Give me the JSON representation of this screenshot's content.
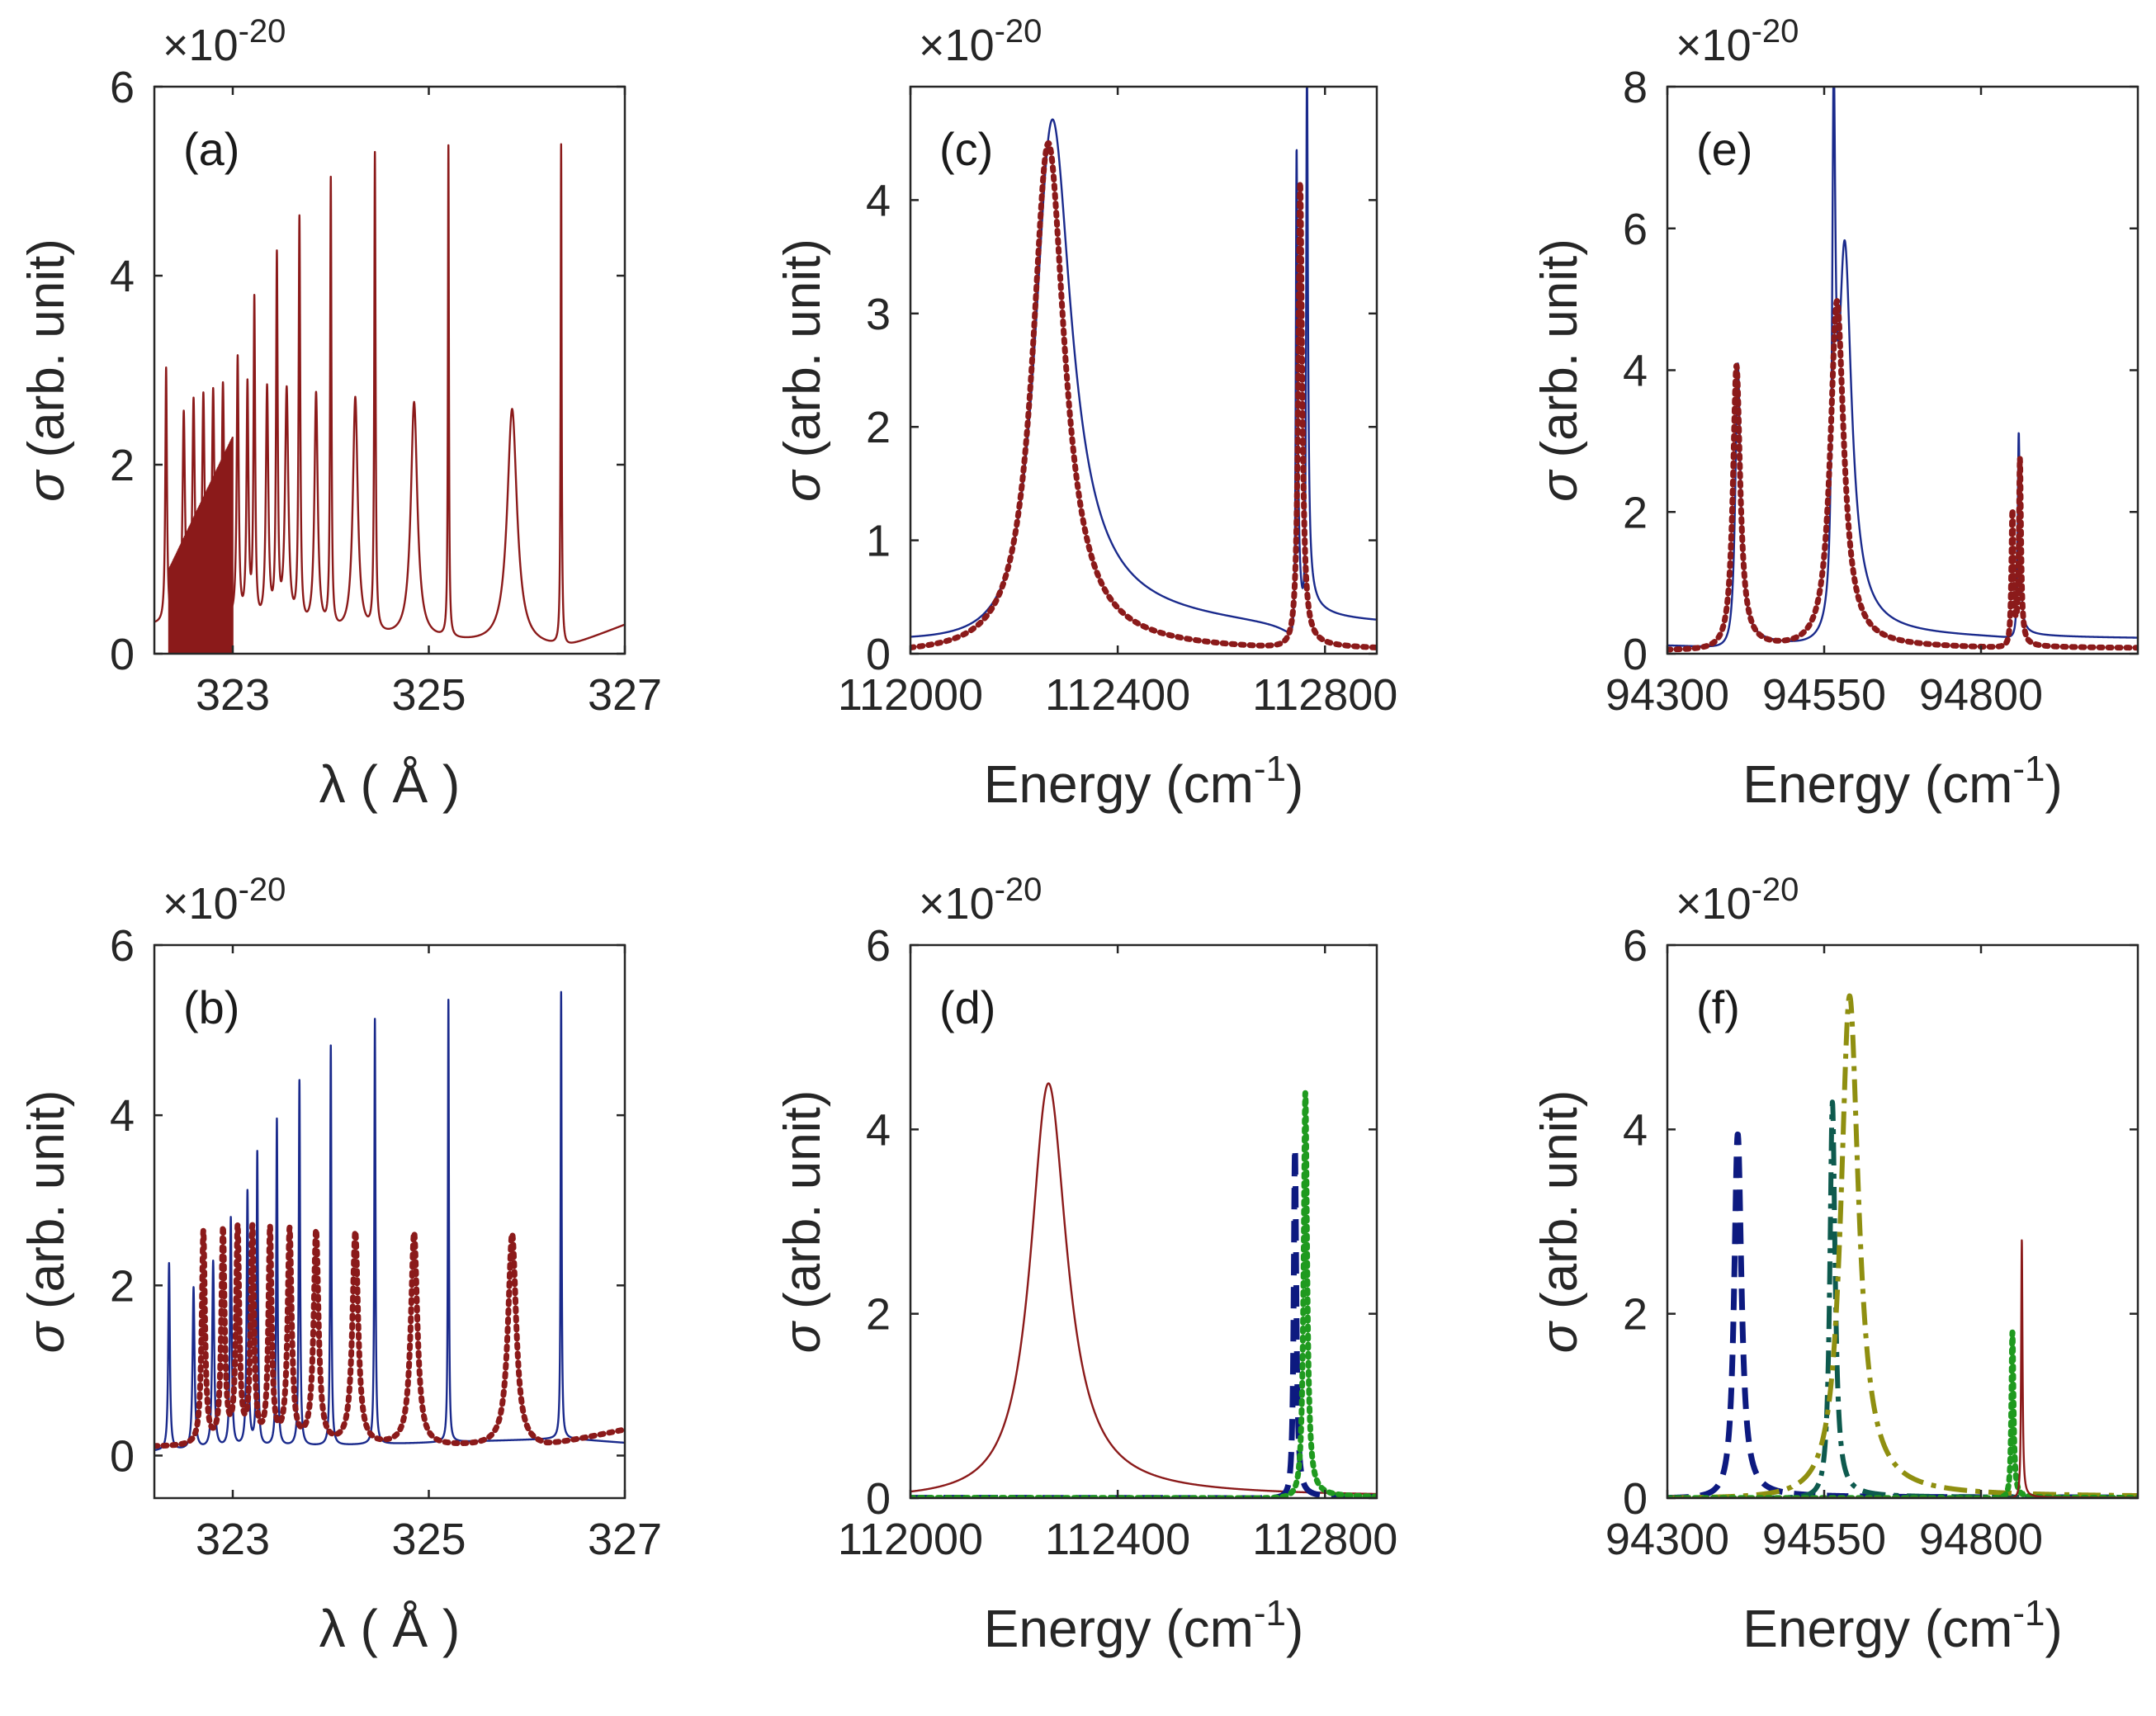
{
  "figure": {
    "colors": {
      "dark_red": "#8b1a1a",
      "navy": "#1a2a8c",
      "dark_navy": "#0d1a80",
      "green": "#1f9a1f",
      "teal": "#0e5a4e",
      "olive": "#8f8f10",
      "axis": "#262626"
    }
  },
  "chart_data": [
    {
      "id": "a",
      "type": "line",
      "panel_label": "(a)",
      "exponent_label": "×10",
      "exponent_power": "-20",
      "xlabel_main": "λ ( Å )",
      "ylabel_sigma": "σ",
      "ylabel_rest": "(arb. unit)",
      "xlim": [
        322.2,
        327
      ],
      "ylim": [
        0,
        6
      ],
      "xticks": [
        323,
        325,
        327
      ],
      "xtick_labels": [
        "323",
        "325",
        "327"
      ],
      "yticks": [
        0,
        2,
        4,
        6
      ],
      "ytick_labels": [
        "0",
        "2",
        "4",
        "6"
      ],
      "series": [
        {
          "name": "σ",
          "color": "#8b1a1a",
          "style": "solid",
          "generator": "sharp-series",
          "background": [
            [
              322.2,
              0.3
            ],
            [
              326.4,
              0.05
            ],
            [
              327,
              0.3
            ]
          ],
          "peaks": [
            {
              "x": 322.32,
              "h": 2.7,
              "w": 0.01
            },
            {
              "x": 322.5,
              "h": 2.2,
              "w": 0.015
            },
            {
              "x": 322.6,
              "h": 2.3,
              "w": 0.015
            },
            {
              "x": 322.7,
              "h": 2.35,
              "w": 0.015
            },
            {
              "x": 322.8,
              "h": 2.4,
              "w": 0.015
            },
            {
              "x": 322.9,
              "h": 2.5,
              "w": 0.015
            },
            {
              "x": 323.05,
              "h": 2.8,
              "w": 0.012
            },
            {
              "x": 323.15,
              "h": 2.5,
              "w": 0.012
            },
            {
              "x": 323.22,
              "h": 3.4,
              "w": 0.01
            },
            {
              "x": 323.35,
              "h": 2.5,
              "w": 0.015
            },
            {
              "x": 323.45,
              "h": 3.85,
              "w": 0.01
            },
            {
              "x": 323.55,
              "h": 2.5,
              "w": 0.02
            },
            {
              "x": 323.68,
              "h": 4.3,
              "w": 0.01
            },
            {
              "x": 323.85,
              "h": 2.5,
              "w": 0.02
            },
            {
              "x": 324.0,
              "h": 4.75,
              "w": 0.008
            },
            {
              "x": 324.25,
              "h": 2.5,
              "w": 0.03
            },
            {
              "x": 324.45,
              "h": 5.05,
              "w": 0.008
            },
            {
              "x": 324.85,
              "h": 2.5,
              "w": 0.04
            },
            {
              "x": 325.2,
              "h": 5.2,
              "w": 0.006
            },
            {
              "x": 325.85,
              "h": 2.5,
              "w": 0.06
            },
            {
              "x": 326.35,
              "h": 5.3,
              "w": 0.006
            }
          ],
          "dense_region": [
            322.35,
            323.0
          ]
        }
      ]
    },
    {
      "id": "b",
      "type": "line",
      "panel_label": "(b)",
      "exponent_label": "×10",
      "exponent_power": "-20",
      "xlabel_main": "λ ( Å )",
      "ylabel_sigma": "σ",
      "ylabel_rest": "(arb. unit)",
      "xlim": [
        322.2,
        327
      ],
      "ylim": [
        -0.5,
        6
      ],
      "xticks": [
        323,
        325,
        327
      ],
      "xtick_labels": [
        "323",
        "325",
        "327"
      ],
      "yticks": [
        0,
        2,
        4,
        6
      ],
      "ytick_labels": [
        "0",
        "2",
        "4",
        "6"
      ],
      "series": [
        {
          "name": "σ (solid)",
          "color": "#1a2a8c",
          "style": "solid",
          "generator": "sharp-series",
          "background": [
            [
              322.2,
              0.05
            ],
            [
              326.4,
              0.2
            ],
            [
              327,
              0.15
            ]
          ],
          "peaks": [
            {
              "x": 322.35,
              "h": 2.2,
              "w": 0.01
            },
            {
              "x": 322.6,
              "h": 1.9,
              "w": 0.012
            },
            {
              "x": 322.8,
              "h": 2.2,
              "w": 0.012
            },
            {
              "x": 322.98,
              "h": 2.7,
              "w": 0.01
            },
            {
              "x": 323.15,
              "h": 3.0,
              "w": 0.01
            },
            {
              "x": 323.25,
              "h": 3.45,
              "w": 0.008
            },
            {
              "x": 323.45,
              "h": 3.85,
              "w": 0.008
            },
            {
              "x": 323.68,
              "h": 4.3,
              "w": 0.008
            },
            {
              "x": 324.0,
              "h": 4.7,
              "w": 0.007
            },
            {
              "x": 324.45,
              "h": 5.0,
              "w": 0.007
            },
            {
              "x": 325.2,
              "h": 5.2,
              "w": 0.006
            },
            {
              "x": 326.35,
              "h": 5.25,
              "w": 0.006
            }
          ]
        },
        {
          "name": "σ (dotted)",
          "color": "#8b1a1a",
          "style": "dotted",
          "generator": "sharp-series",
          "background": [
            [
              322.2,
              0.1
            ],
            [
              326.2,
              0.1
            ],
            [
              327,
              0.3
            ]
          ],
          "peaks": [
            {
              "x": 322.7,
              "h": 2.5,
              "w": 0.02
            },
            {
              "x": 322.9,
              "h": 2.5,
              "w": 0.02
            },
            {
              "x": 323.05,
              "h": 2.5,
              "w": 0.02
            },
            {
              "x": 323.2,
              "h": 2.5,
              "w": 0.02
            },
            {
              "x": 323.38,
              "h": 2.5,
              "w": 0.02
            },
            {
              "x": 323.58,
              "h": 2.5,
              "w": 0.025
            },
            {
              "x": 323.85,
              "h": 2.5,
              "w": 0.03
            },
            {
              "x": 324.25,
              "h": 2.5,
              "w": 0.035
            },
            {
              "x": 324.85,
              "h": 2.5,
              "w": 0.04
            },
            {
              "x": 325.85,
              "h": 2.5,
              "w": 0.05
            }
          ]
        }
      ]
    },
    {
      "id": "c",
      "type": "line",
      "panel_label": "(c)",
      "exponent_label": "×10",
      "exponent_power": "-20",
      "xlabel_main": "Energy (cm",
      "xlabel_sup": "-1",
      "xlabel_end": ")",
      "ylabel_sigma": "σ",
      "ylabel_rest": "(arb. unit)",
      "xlim": [
        112000,
        112900
      ],
      "ylim": [
        0,
        5
      ],
      "xticks": [
        112000,
        112400,
        112800
      ],
      "xtick_labels": [
        "112000",
        "112400",
        "112800"
      ],
      "yticks": [
        0,
        1,
        2,
        3,
        4
      ],
      "ytick_labels": [
        "0",
        "1",
        "2",
        "3",
        "4"
      ],
      "series": [
        {
          "name": "solid",
          "color": "#1a2a8c",
          "style": "solid",
          "generator": "fano",
          "background": 0.0,
          "peaks": [
            {
              "x": 112270,
              "h": 4.58,
              "w": 85,
              "q": 10
            },
            {
              "x": 112745,
              "h": 4.3,
              "w": 4,
              "q": 8
            },
            {
              "x": 112765,
              "h": 4.85,
              "w": 4,
              "q": 8
            }
          ]
        },
        {
          "name": "dotted",
          "color": "#8b1a1a",
          "style": "dotted",
          "generator": "fano",
          "background": 0.0,
          "peaks": [
            {
              "x": 112265,
              "h": 4.5,
              "w": 75,
              "q": 30
            },
            {
              "x": 112752,
              "h": 4.1,
              "w": 9,
              "q": 30
            }
          ]
        }
      ]
    },
    {
      "id": "d",
      "type": "line",
      "panel_label": "(d)",
      "exponent_label": "×10",
      "exponent_power": "-20",
      "xlabel_main": "Energy (cm",
      "xlabel_sup": "-1",
      "xlabel_end": ")",
      "ylabel_sigma": "σ",
      "ylabel_rest": "(arb. unit)",
      "xlim": [
        112000,
        112900
      ],
      "ylim": [
        0,
        6
      ],
      "xticks": [
        112000,
        112400,
        112800
      ],
      "xtick_labels": [
        "112000",
        "112400",
        "112800"
      ],
      "yticks": [
        0,
        2,
        4,
        6
      ],
      "ytick_labels": [
        "0",
        "2",
        "4",
        "6"
      ],
      "series": [
        {
          "name": "solid",
          "color": "#8b1a1a",
          "style": "solid",
          "generator": "fano",
          "background": 0.0,
          "peaks": [
            {
              "x": 112265,
              "h": 4.5,
              "w": 85,
              "q": 30
            }
          ]
        },
        {
          "name": "dashed",
          "color": "#0d1a80",
          "style": "dashed",
          "generator": "fano",
          "background": 0.0,
          "peaks": [
            {
              "x": 112742,
              "h": 3.8,
              "w": 6,
              "q": 30
            }
          ]
        },
        {
          "name": "dotted",
          "color": "#1f9a1f",
          "style": "dotted",
          "generator": "fano",
          "background": 0.0,
          "peaks": [
            {
              "x": 112762,
              "h": 4.4,
              "w": 8,
              "q": 30
            }
          ]
        }
      ]
    },
    {
      "id": "e",
      "type": "line",
      "panel_label": "(e)",
      "exponent_label": "×10",
      "exponent_power": "-20",
      "xlabel_main": "Energy (cm",
      "xlabel_sup": "-1",
      "xlabel_end": ")",
      "ylabel_sigma": "σ",
      "ylabel_rest": "(arb. unit)",
      "xlim": [
        94300,
        95050
      ],
      "ylim": [
        0,
        8
      ],
      "xticks": [
        94300,
        94550,
        94800
      ],
      "xtick_labels": [
        "94300",
        "94550",
        "94800"
      ],
      "yticks": [
        0,
        2,
        4,
        6,
        8
      ],
      "ytick_labels": [
        "0",
        "2",
        "4",
        "6",
        "8"
      ],
      "series": [
        {
          "name": "solid",
          "color": "#1a2a8c",
          "style": "solid",
          "generator": "fano",
          "background": 0.05,
          "peaks": [
            {
              "x": 94412,
              "h": 4.0,
              "w": 10,
              "q": 12
            },
            {
              "x": 94565,
              "h": 6.8,
              "w": 6,
              "q": 12
            },
            {
              "x": 94582,
              "h": 5.3,
              "w": 25,
              "q": 12
            },
            {
              "x": 94860,
              "h": 2.9,
              "w": 4,
              "q": 12
            }
          ]
        },
        {
          "name": "dotted",
          "color": "#8b1a1a",
          "style": "dotted",
          "generator": "fano",
          "background": 0.05,
          "peaks": [
            {
              "x": 94410,
              "h": 4.0,
              "w": 14,
              "q": 30
            },
            {
              "x": 94570,
              "h": 4.9,
              "w": 26,
              "q": 30
            },
            {
              "x": 94850,
              "h": 1.9,
              "w": 4,
              "q": 30
            },
            {
              "x": 94862,
              "h": 2.6,
              "w": 4,
              "q": 30
            }
          ]
        }
      ]
    },
    {
      "id": "f",
      "type": "line",
      "panel_label": "(f)",
      "exponent_label": "×10",
      "exponent_power": "-20",
      "xlabel_main": "Energy (cm",
      "xlabel_sup": "-1",
      "xlabel_end": ")",
      "ylabel_sigma": "σ",
      "ylabel_rest": "(arb. unit)",
      "xlim": [
        94300,
        95050
      ],
      "ylim": [
        0,
        6
      ],
      "xticks": [
        94300,
        94550,
        94800
      ],
      "xtick_labels": [
        "94300",
        "94550",
        "94800"
      ],
      "yticks": [
        0,
        2,
        4,
        6
      ],
      "ytick_labels": [
        "0",
        "2",
        "4",
        "6"
      ],
      "series": [
        {
          "name": "dashed",
          "color": "#0d1a80",
          "style": "dashed",
          "generator": "fano",
          "background": 0.0,
          "peaks": [
            {
              "x": 94412,
              "h": 3.95,
              "w": 14,
              "q": 30
            }
          ]
        },
        {
          "name": "dash-dot teal",
          "color": "#0e5a4e",
          "style": "dashdot",
          "generator": "fano",
          "background": 0.0,
          "peaks": [
            {
              "x": 94563,
              "h": 4.3,
              "w": 10,
              "q": 30
            }
          ]
        },
        {
          "name": "dash-dot olive",
          "color": "#8f8f10",
          "style": "dashdot",
          "generator": "fano",
          "background": 0.0,
          "peaks": [
            {
              "x": 94590,
              "h": 5.45,
              "w": 34,
              "q": 30
            }
          ]
        },
        {
          "name": "dotted",
          "color": "#1f9a1f",
          "style": "dotted",
          "generator": "fano",
          "background": 0.0,
          "peaks": [
            {
              "x": 94850,
              "h": 1.8,
              "w": 4,
              "q": 30
            }
          ]
        },
        {
          "name": "solid",
          "color": "#8b1a1a",
          "style": "solid",
          "generator": "fano",
          "background": 0.0,
          "peaks": [
            {
              "x": 94865,
              "h": 2.8,
              "w": 2.5,
              "q": 30
            }
          ]
        }
      ]
    }
  ]
}
